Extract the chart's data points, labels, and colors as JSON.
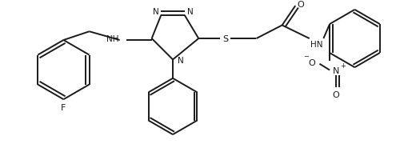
{
  "background": "#ffffff",
  "line_color": "#1a1a1a",
  "line_width": 1.4,
  "figsize": [
    5.15,
    2.01
  ],
  "dpi": 100,
  "xlim": [
    0,
    5.15
  ],
  "ylim": [
    0,
    2.01
  ]
}
